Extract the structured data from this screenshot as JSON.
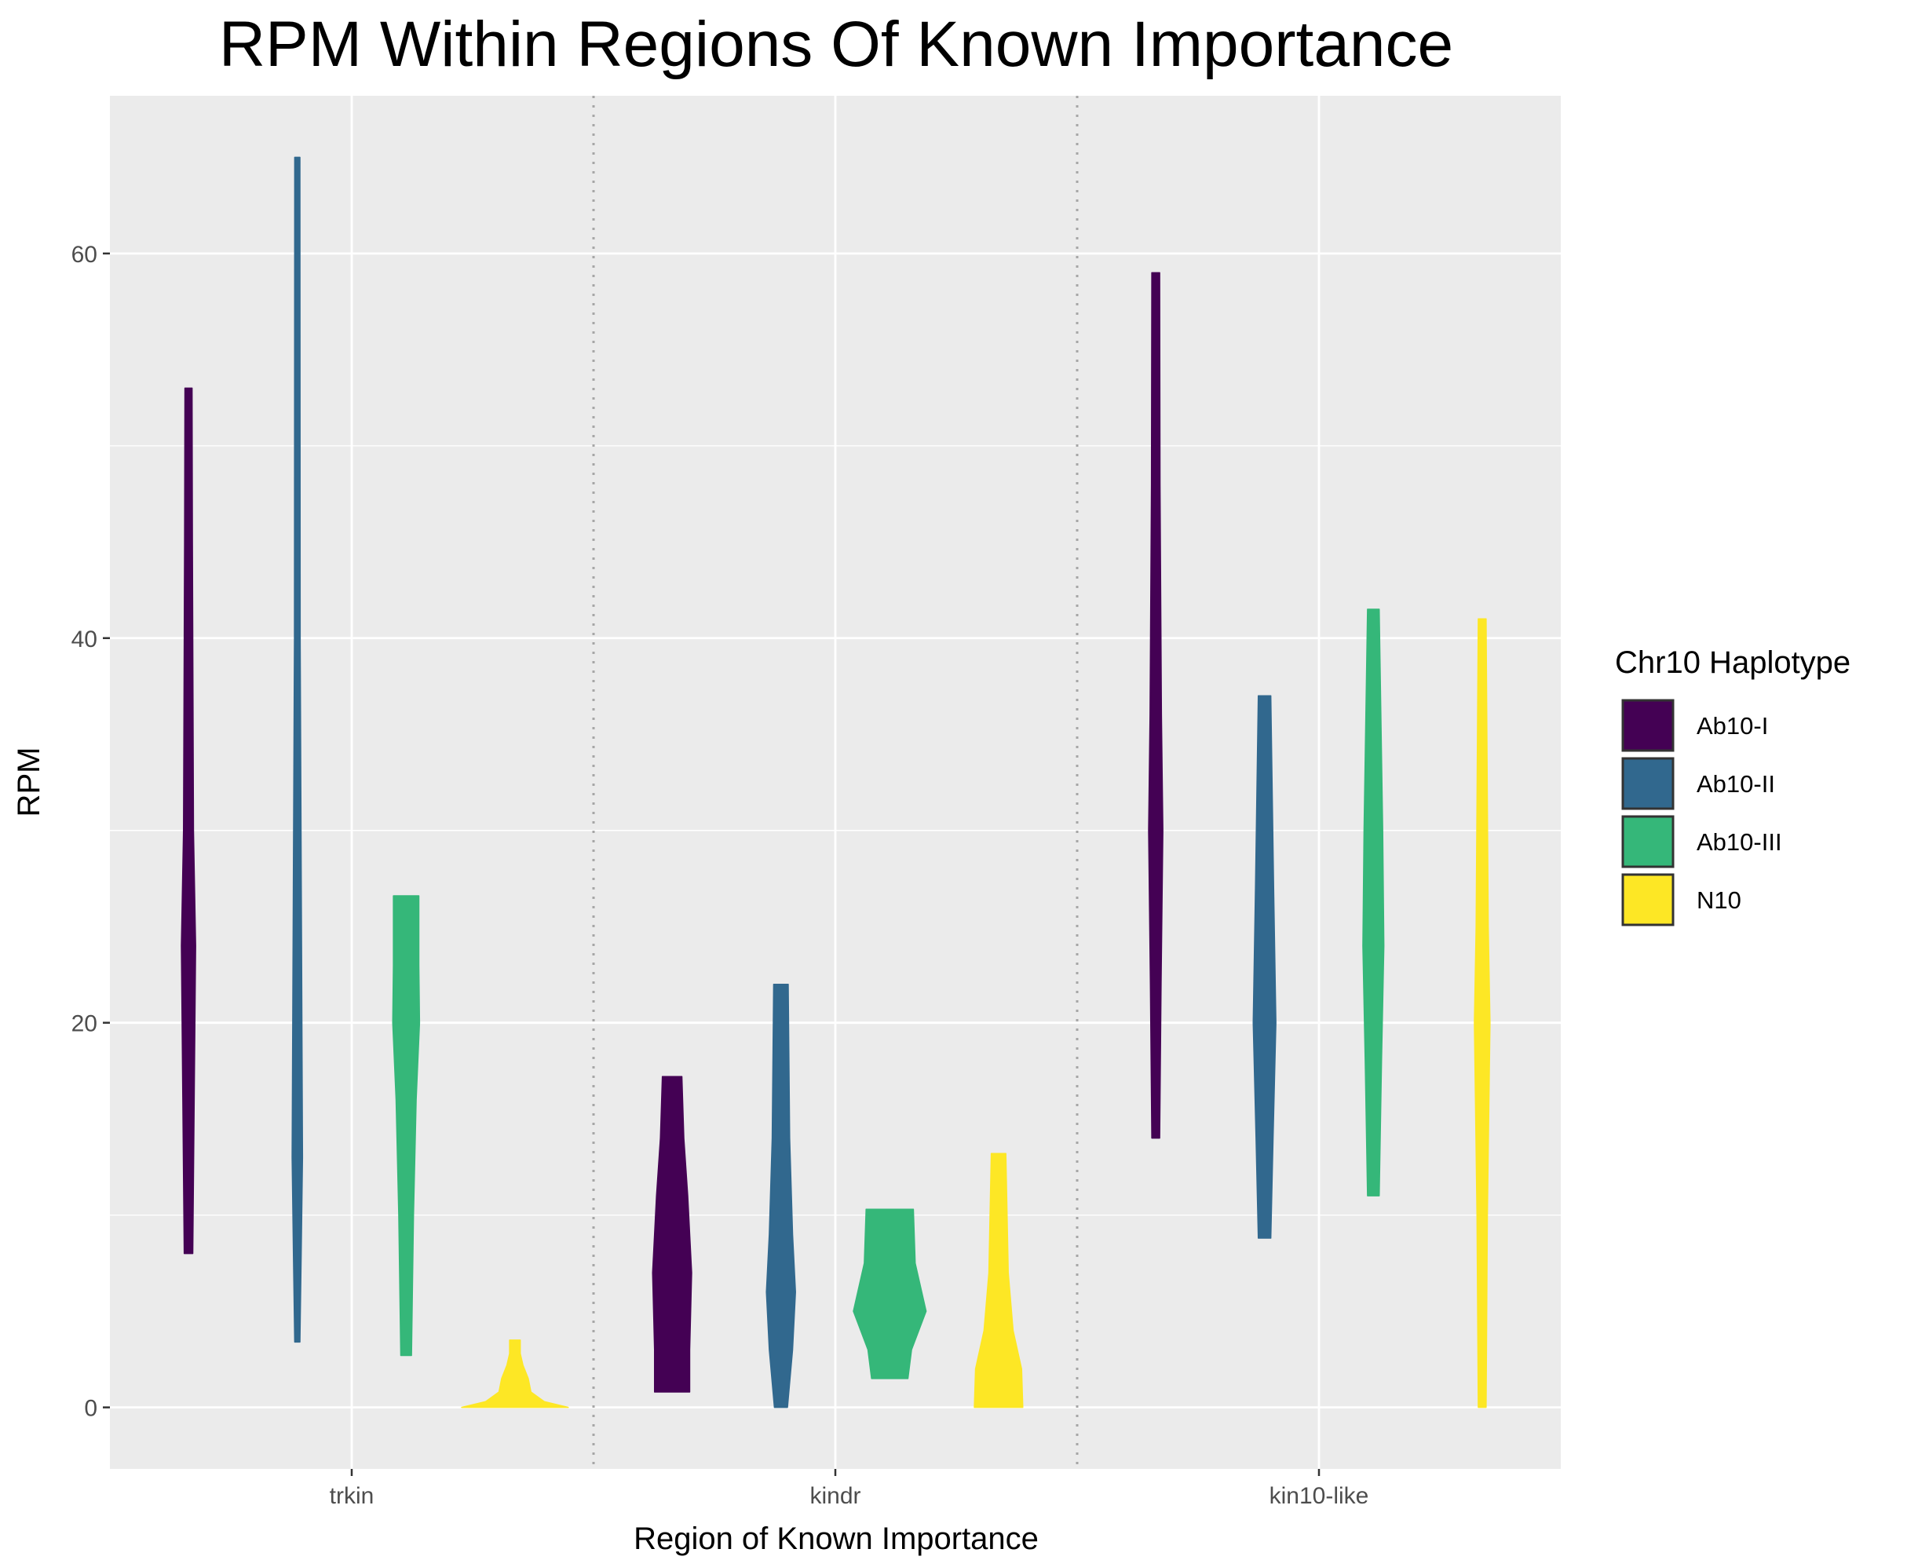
{
  "chart_data": {
    "type": "violin",
    "title": "RPM Within Regions Of Known Importance",
    "xlabel": "Region of Known Importance",
    "ylabel": "RPM",
    "categories": [
      "trkin",
      "kindr",
      "kin10-like"
    ],
    "ylim": [
      -3.2,
      68.2
    ],
    "yticks": [
      0,
      20,
      40,
      60
    ],
    "grid": true,
    "legend": {
      "title": "Chr10 Haplotype",
      "position": "right"
    },
    "series": [
      {
        "name": "Ab10-I",
        "color": "#440154",
        "violins": [
          {
            "category": "trkin",
            "ymin": 8.0,
            "ymax": 53.0,
            "profile": [
              [
                8.0,
                0.6
              ],
              [
                20.0,
                0.9
              ],
              [
                24.0,
                1.0
              ],
              [
                30.0,
                0.7
              ],
              [
                45.0,
                0.55
              ],
              [
                53.0,
                0.5
              ]
            ]
          },
          {
            "category": "kindr",
            "ymin": 0.8,
            "ymax": 17.2,
            "profile": [
              [
                0.8,
                0.9
              ],
              [
                3.0,
                0.9
              ],
              [
                7.0,
                1.0
              ],
              [
                11.0,
                0.8
              ],
              [
                14.0,
                0.6
              ],
              [
                17.2,
                0.5
              ]
            ]
          },
          {
            "category": "kin10-like",
            "ymin": 14.0,
            "ymax": 59.0,
            "profile": [
              [
                14.0,
                0.55
              ],
              [
                22.0,
                0.75
              ],
              [
                30.0,
                1.0
              ],
              [
                36.0,
                0.8
              ],
              [
                48.0,
                0.6
              ],
              [
                59.0,
                0.55
              ]
            ]
          }
        ]
      },
      {
        "name": "Ab10-II",
        "color": "#31688e",
        "violins": [
          {
            "category": "trkin",
            "ymin": 3.4,
            "ymax": 65.0,
            "profile": [
              [
                3.4,
                0.5
              ],
              [
                8.0,
                0.75
              ],
              [
                13.0,
                1.0
              ],
              [
                25.0,
                0.8
              ],
              [
                40.0,
                0.55
              ],
              [
                65.0,
                0.5
              ]
            ]
          },
          {
            "category": "kindr",
            "ymin": 0.0,
            "ymax": 22.0,
            "profile": [
              [
                0.0,
                0.45
              ],
              [
                3.0,
                0.8
              ],
              [
                6.0,
                1.0
              ],
              [
                9.0,
                0.8
              ],
              [
                14.0,
                0.6
              ],
              [
                22.0,
                0.5
              ]
            ]
          },
          {
            "category": "kin10-like",
            "ymin": 8.8,
            "ymax": 37.0,
            "profile": [
              [
                8.8,
                0.55
              ],
              [
                14.0,
                0.75
              ],
              [
                20.0,
                1.0
              ],
              [
                27.0,
                0.8
              ],
              [
                37.0,
                0.55
              ]
            ]
          }
        ]
      },
      {
        "name": "Ab10-III",
        "color": "#35b779",
        "violins": [
          {
            "category": "trkin",
            "ymin": 2.7,
            "ymax": 26.6,
            "profile": [
              [
                2.7,
                0.4
              ],
              [
                10.0,
                0.55
              ],
              [
                16.0,
                0.75
              ],
              [
                20.0,
                1.0
              ],
              [
                23.0,
                0.95
              ],
              [
                26.6,
                0.95
              ]
            ]
          },
          {
            "category": "kindr",
            "ymin": 1.5,
            "ymax": 10.3,
            "profile": [
              [
                1.5,
                0.5
              ],
              [
                3.0,
                0.6
              ],
              [
                5.0,
                1.0
              ],
              [
                7.5,
                0.7
              ],
              [
                10.3,
                0.65
              ]
            ]
          },
          {
            "category": "kin10-like",
            "ymin": 11.0,
            "ymax": 41.5,
            "profile": [
              [
                11.0,
                0.5
              ],
              [
                18.0,
                0.7
              ],
              [
                24.0,
                0.9
              ],
              [
                30.0,
                0.8
              ],
              [
                41.5,
                0.5
              ]
            ]
          }
        ]
      },
      {
        "name": "N10",
        "color": "#fde725",
        "violins": [
          {
            "category": "trkin",
            "ymin": 0.0,
            "ymax": 3.5,
            "profile": [
              [
                0.0,
                1.0
              ],
              [
                0.3,
                0.55
              ],
              [
                0.8,
                0.3
              ],
              [
                1.5,
                0.25
              ],
              [
                2.2,
                0.15
              ],
              [
                2.8,
                0.1
              ],
              [
                3.5,
                0.1
              ]
            ]
          },
          {
            "category": "kindr",
            "ymin": 0.0,
            "ymax": 13.2,
            "profile": [
              [
                0.0,
                1.0
              ],
              [
                2.0,
                0.95
              ],
              [
                4.0,
                0.6
              ],
              [
                7.0,
                0.4
              ],
              [
                13.2,
                0.3
              ]
            ]
          },
          {
            "category": "kin10-like",
            "ymin": 0.0,
            "ymax": 41.0,
            "profile": [
              [
                0.0,
                0.45
              ],
              [
                10.0,
                0.6
              ],
              [
                20.0,
                0.9
              ],
              [
                25.0,
                0.7
              ],
              [
                41.0,
                0.45
              ]
            ]
          }
        ]
      }
    ]
  }
}
